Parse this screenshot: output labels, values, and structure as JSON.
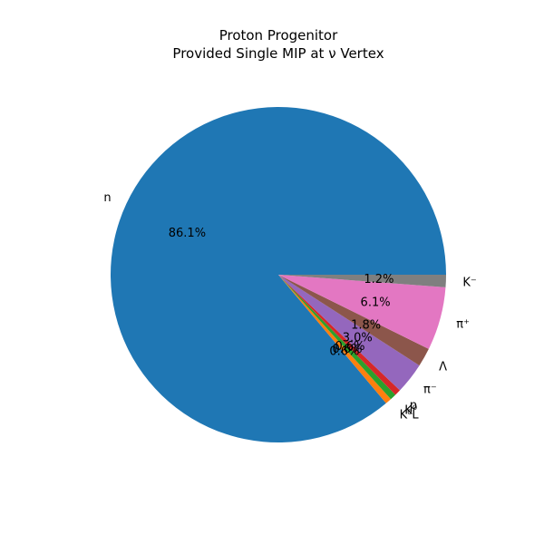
{
  "chart_data": {
    "type": "pie",
    "title_line1": "Proton Progenitor",
    "title_line2": "Provided Single MIP at ν Vertex",
    "categories": [
      "n",
      "K⁰L",
      "K⁰",
      "p",
      "π⁻",
      "Λ",
      "π⁺",
      "K⁻"
    ],
    "values": [
      86.1,
      0.6,
      0.6,
      0.6,
      3.0,
      1.8,
      6.1,
      1.2
    ],
    "percent_labels": [
      "86.1%",
      "0.6%",
      "0.6%",
      "0.6%",
      "3.0%",
      "1.8%",
      "6.1%",
      "1.2%"
    ],
    "colors": [
      "#1f77b4",
      "#ff7f0e",
      "#2ca02c",
      "#d62728",
      "#9467bd",
      "#8c564b",
      "#e377c2",
      "#7f7f7f"
    ],
    "start_angle_deg": 0,
    "direction": "counterclockwise",
    "legend": "none"
  }
}
